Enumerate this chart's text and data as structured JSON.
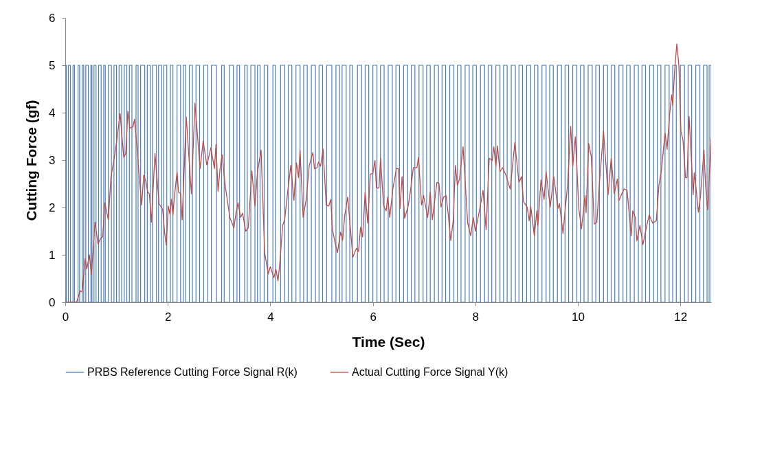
{
  "chart_data": {
    "type": "line",
    "xlabel": "Time (Sec)",
    "ylabel": "Cutting Force (gf)",
    "xlim": [
      0,
      12.6
    ],
    "ylim": [
      0,
      6
    ],
    "xticks": [
      0,
      2,
      4,
      6,
      8,
      10,
      12
    ],
    "yticks": [
      0,
      1,
      2,
      3,
      4,
      5,
      6
    ],
    "grid": false,
    "legend": "bottom",
    "series": [
      {
        "name": "PRBS Reference Cutting Force Signal R(k)",
        "type": "step",
        "color": "#4a7ebb",
        "x": [
          0,
          0.02,
          0.06,
          0.1,
          0.15,
          0.18,
          0.25,
          0.28,
          0.33,
          0.36,
          0.4,
          0.45,
          0.5,
          0.52,
          0.56,
          0.6,
          0.65,
          0.7,
          0.75,
          0.78,
          0.84,
          0.9,
          0.95,
          1.0,
          1.05,
          1.1,
          1.15,
          1.2,
          1.25,
          1.3,
          1.38,
          1.42,
          1.47,
          1.55,
          1.6,
          1.66,
          1.7,
          1.78,
          1.82,
          1.88,
          1.92,
          1.98,
          2.05,
          2.1,
          2.18,
          2.25,
          2.3,
          2.35,
          2.42,
          2.48,
          2.55,
          2.62,
          2.7,
          2.78,
          2.85,
          2.95,
          3.05,
          3.1,
          3.2,
          3.28,
          3.35,
          3.4,
          3.5,
          3.55,
          3.62,
          3.7,
          3.75,
          3.8,
          3.88,
          3.95,
          4.05,
          4.1,
          4.2,
          4.28,
          4.35,
          4.42,
          4.5,
          4.58,
          4.65,
          4.72,
          4.8,
          4.88,
          4.95,
          5.02,
          5.1,
          5.2,
          5.28,
          5.35,
          5.4,
          5.48,
          5.55,
          5.6,
          5.7,
          5.78,
          5.85,
          5.92,
          6.0,
          6.08,
          6.15,
          6.22,
          6.3,
          6.38,
          6.45,
          6.52,
          6.6,
          6.68,
          6.75,
          6.82,
          6.9,
          6.98,
          7.05,
          7.12,
          7.2,
          7.28,
          7.35,
          7.42,
          7.5,
          7.58,
          7.65,
          7.72,
          7.8,
          7.88,
          7.95,
          8.02,
          8.1,
          8.18,
          8.25,
          8.32,
          8.4,
          8.48,
          8.55,
          8.62,
          8.7,
          8.78,
          8.85,
          8.92,
          9.0,
          9.08,
          9.15,
          9.22,
          9.3,
          9.38,
          9.45,
          9.52,
          9.6,
          9.68,
          9.75,
          9.82,
          9.9,
          9.98,
          10.05,
          10.12,
          10.2,
          10.28,
          10.35,
          10.42,
          10.5,
          10.58,
          10.65,
          10.72,
          10.8,
          10.88,
          10.95,
          11.02,
          11.1,
          11.18,
          11.25,
          11.32,
          11.4,
          11.48,
          11.55,
          11.62,
          11.7,
          11.78,
          11.85,
          11.92,
          12.0,
          12.08,
          12.15,
          12.22,
          12.3,
          12.38,
          12.45,
          12.52,
          12.56,
          12.6
        ],
        "values": [
          5,
          0,
          5,
          0,
          5,
          0,
          5,
          0,
          5,
          0,
          5,
          0,
          5,
          0,
          5,
          0,
          5,
          0,
          5,
          0,
          5,
          0,
          5,
          0,
          5,
          0,
          5,
          0,
          5,
          0,
          5,
          0,
          5,
          0,
          5,
          0,
          5,
          0,
          5,
          0,
          5,
          0,
          5,
          0,
          5,
          0,
          5,
          0,
          5,
          0,
          5,
          0,
          5,
          0,
          5,
          0,
          5,
          0,
          5,
          0,
          5,
          0,
          5,
          0,
          5,
          0,
          5,
          0,
          5,
          0,
          5,
          0,
          5,
          0,
          5,
          0,
          5,
          0,
          5,
          0,
          5,
          0,
          5,
          0,
          5,
          0,
          5,
          0,
          5,
          0,
          5,
          0,
          5,
          0,
          5,
          0,
          5,
          0,
          5,
          0,
          5,
          0,
          5,
          0,
          5,
          0,
          5,
          0,
          5,
          0,
          5,
          0,
          5,
          0,
          5,
          0,
          5,
          0,
          5,
          0,
          5,
          0,
          5,
          0,
          5,
          0,
          5,
          0,
          5,
          0,
          5,
          0,
          5,
          0,
          5,
          0,
          5,
          0,
          5,
          0,
          5,
          0,
          5,
          0,
          5,
          0,
          5,
          0,
          5,
          0,
          5,
          0,
          5,
          0,
          5,
          0,
          5,
          0,
          5,
          0,
          5,
          0,
          5,
          0,
          5,
          0,
          5,
          0,
          5,
          0,
          5,
          0,
          5,
          0,
          5,
          0,
          5,
          0,
          5,
          0,
          5,
          0,
          5,
          0,
          5,
          0
        ]
      },
      {
        "name": "Actual Cutting Force Signal Y(k)",
        "color": "#be4b48",
        "x": [
          0,
          0.22,
          0.29,
          0.33,
          0.39,
          0.42,
          0.47,
          0.51,
          0.58,
          0.64,
          0.69,
          0.73,
          0.77,
          0.84,
          0.89,
          0.97,
          1.02,
          1.07,
          1.14,
          1.18,
          1.22,
          1.26,
          1.32,
          1.35,
          1.4,
          1.44,
          1.49,
          1.53,
          1.57,
          1.61,
          1.64,
          1.68,
          1.75,
          1.83,
          1.9,
          1.94,
          1.97,
          2.01,
          2.04,
          2.07,
          2.1,
          2.13,
          2.18,
          2.21,
          2.25,
          2.28,
          2.36,
          2.46,
          2.53,
          2.63,
          2.69,
          2.76,
          2.79,
          2.84,
          2.91,
          2.94,
          2.98,
          3.02,
          3.06,
          3.12,
          3.21,
          3.29,
          3.33,
          3.37,
          3.42,
          3.46,
          3.52,
          3.57,
          3.64,
          3.7,
          3.75,
          3.82,
          3.89,
          3.96,
          4.0,
          4.07,
          4.11,
          4.15,
          4.19,
          4.24,
          4.28,
          4.34,
          4.4,
          4.46,
          4.51,
          4.55,
          4.58,
          4.64,
          4.7,
          4.76,
          4.83,
          4.86,
          4.91,
          4.94,
          4.98,
          5.03,
          5.09,
          5.14,
          5.18,
          5.21,
          5.27,
          5.31,
          5.37,
          5.41,
          5.45,
          5.51,
          5.61,
          5.68,
          5.72,
          5.76,
          5.8,
          5.85,
          5.9,
          5.95,
          6.0,
          6.04,
          6.07,
          6.12,
          6.15,
          6.21,
          6.26,
          6.29,
          6.33,
          6.39,
          6.46,
          6.5,
          6.53,
          6.57,
          6.62,
          6.69,
          6.73,
          6.79,
          6.86,
          6.89,
          6.95,
          6.99,
          7.07,
          7.12,
          7.16,
          7.25,
          7.29,
          7.33,
          7.38,
          7.43,
          7.47,
          7.52,
          7.57,
          7.61,
          7.65,
          7.69,
          7.76,
          7.85,
          7.91,
          7.96,
          8.0,
          8.07,
          8.15,
          8.21,
          8.27,
          8.33,
          8.36,
          8.4,
          8.43,
          8.48,
          8.53,
          8.59,
          8.68,
          8.77,
          8.85,
          8.9,
          8.94,
          9.01,
          9.05,
          9.08,
          9.15,
          9.2,
          9.22,
          9.28,
          9.34,
          9.38,
          9.46,
          9.53,
          9.61,
          9.64,
          9.71,
          9.75,
          9.8,
          9.86,
          9.9,
          9.95,
          10.02,
          10.07,
          10.14,
          10.16,
          10.21,
          10.26,
          10.32,
          10.37,
          10.42,
          10.5,
          10.59,
          10.65,
          10.71,
          10.77,
          10.8,
          10.9,
          10.96,
          11.04,
          11.07,
          11.12,
          11.15,
          11.21,
          11.27,
          11.34,
          11.39,
          11.46,
          11.53,
          11.58,
          11.63,
          11.7,
          11.74,
          11.79,
          11.83,
          11.85,
          11.89,
          11.93,
          11.97,
          12.01,
          12.05,
          12.1,
          12.13,
          12.17,
          12.25,
          12.27,
          12.31,
          12.35,
          12.39,
          12.46,
          12.49,
          12.53,
          12.6
        ],
        "values": [
          0,
          0,
          0.24,
          0.22,
          0.92,
          0.7,
          1.0,
          0.58,
          1.69,
          1.23,
          1.35,
          1.38,
          2.1,
          1.74,
          2.63,
          3.14,
          3.55,
          3.98,
          3.06,
          3.14,
          4.03,
          3.67,
          3.7,
          3.86,
          3.26,
          2.68,
          2.05,
          2.68,
          2.56,
          2.32,
          2.29,
          1.69,
          3.14,
          2.08,
          1.96,
          1.45,
          1.21,
          2.03,
          1.86,
          2.17,
          1.84,
          2.24,
          2.75,
          2.32,
          2.29,
          1.74,
          3.91,
          2.29,
          4.2,
          2.82,
          3.4,
          2.9,
          3.02,
          3.26,
          2.82,
          3.33,
          2.34,
          2.82,
          3.11,
          2.46,
          1.79,
          1.57,
          1.88,
          2.1,
          1.79,
          1.88,
          1.5,
          1.57,
          2.77,
          2.03,
          2.75,
          3.21,
          1.04,
          0.6,
          0.75,
          0.52,
          0.69,
          0.45,
          0.88,
          1.62,
          1.74,
          2.34,
          2.89,
          2.15,
          2.94,
          2.63,
          3.21,
          1.79,
          2.17,
          2.89,
          3.16,
          2.82,
          2.84,
          2.96,
          2.87,
          3.23,
          2.05,
          2.03,
          2.17,
          1.55,
          1.22,
          1.05,
          1.48,
          1.31,
          1.82,
          2.22,
          0.95,
          1.14,
          1.07,
          1.58,
          1.38,
          2.32,
          1.67,
          2.7,
          2.72,
          2.99,
          2.41,
          2.41,
          3.04,
          2.03,
          1.93,
          2.22,
          1.79,
          2.39,
          2.82,
          2.82,
          1.98,
          2.65,
          1.77,
          2.03,
          2.32,
          2.84,
          2.84,
          3.06,
          2.05,
          2.25,
          1.79,
          2.32,
          1.74,
          2.53,
          2.51,
          2.01,
          2.22,
          2.25,
          1.86,
          1.3,
          1.74,
          2.89,
          2.46,
          2.6,
          3.28,
          1.67,
          1.4,
          1.79,
          1.5,
          1.88,
          2.36,
          1.53,
          3.04,
          2.99,
          3.28,
          2.87,
          3.3,
          2.75,
          2.84,
          2.7,
          2.39,
          3.37,
          2.53,
          2.65,
          2.12,
          2.01,
          1.72,
          2.03,
          1.4,
          1.93,
          1.62,
          2.58,
          2.17,
          2.75,
          2.01,
          2.65,
          1.98,
          2.08,
          1.45,
          1.93,
          2.48,
          3.71,
          2.87,
          3.49,
          1.96,
          1.55,
          2.25,
          1.89,
          3.35,
          3.08,
          1.65,
          1.69,
          2.51,
          3.61,
          2.27,
          3.04,
          2.29,
          2.6,
          2.15,
          2.39,
          2.36,
          1.4,
          1.93,
          1.79,
          1.3,
          1.62,
          1.22,
          1.6,
          1.84,
          1.67,
          1.72,
          2.46,
          2.79,
          3.57,
          3.23,
          3.97,
          4.38,
          4.16,
          4.93,
          5.45,
          5.0,
          3.61,
          3.42,
          2.63,
          2.63,
          3.92,
          2.27,
          2.73,
          2.36,
          1.9,
          2.22,
          3.21,
          2.48,
          1.95,
          3.45
        ]
      }
    ]
  }
}
